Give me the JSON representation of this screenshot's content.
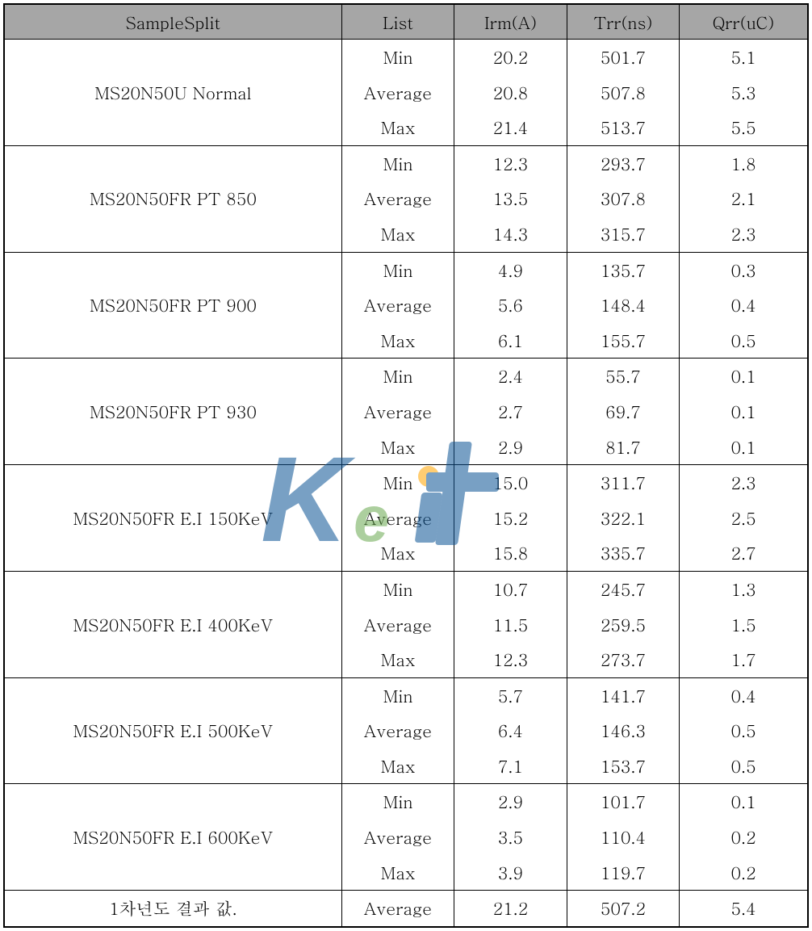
{
  "columns": {
    "sample": "SampleSplit",
    "list": "List",
    "irm": "Irm(A)",
    "trr": "Trr(ns)",
    "qrr": "Qrr(uC)"
  },
  "list_labels": {
    "min": "Min",
    "avg": "Average",
    "max": "Max"
  },
  "groups": [
    {
      "sample": "MS20N50U Normal",
      "rows": [
        {
          "list": "min",
          "irm": "20.2",
          "trr": "501.7",
          "qrr": "5.1"
        },
        {
          "list": "avg",
          "irm": "20.8",
          "trr": "507.8",
          "qrr": "5.3"
        },
        {
          "list": "max",
          "irm": "21.4",
          "trr": "513.7",
          "qrr": "5.5"
        }
      ]
    },
    {
      "sample": "MS20N50FR PT 850",
      "rows": [
        {
          "list": "min",
          "irm": "12.3",
          "trr": "293.7",
          "qrr": "1.8"
        },
        {
          "list": "avg",
          "irm": "13.5",
          "trr": "307.8",
          "qrr": "2.1"
        },
        {
          "list": "max",
          "irm": "14.3",
          "trr": "315.7",
          "qrr": "2.3"
        }
      ]
    },
    {
      "sample": "MS20N50FR PT 900",
      "rows": [
        {
          "list": "min",
          "irm": "4.9",
          "trr": "135.7",
          "qrr": "0.3"
        },
        {
          "list": "avg",
          "irm": "5.6",
          "trr": "148.4",
          "qrr": "0.4"
        },
        {
          "list": "max",
          "irm": "6.1",
          "trr": "155.7",
          "qrr": "0.5"
        }
      ]
    },
    {
      "sample": "MS20N50FR PT 930",
      "rows": [
        {
          "list": "min",
          "irm": "2.4",
          "trr": "55.7",
          "qrr": "0.1"
        },
        {
          "list": "avg",
          "irm": "2.7",
          "trr": "69.7",
          "qrr": "0.1"
        },
        {
          "list": "max",
          "irm": "2.9",
          "trr": "81.7",
          "qrr": "0.1"
        }
      ]
    },
    {
      "sample": "MS20N50FR E.I 150KeV",
      "rows": [
        {
          "list": "min",
          "irm": "15.0",
          "trr": "311.7",
          "qrr": "2.3"
        },
        {
          "list": "avg",
          "irm": "15.2",
          "trr": "322.1",
          "qrr": "2.5"
        },
        {
          "list": "max",
          "irm": "15.8",
          "trr": "335.7",
          "qrr": "2.7"
        }
      ]
    },
    {
      "sample": "MS20N50FR E.I 400KeV",
      "rows": [
        {
          "list": "min",
          "irm": "10.7",
          "trr": "245.7",
          "qrr": "1.3"
        },
        {
          "list": "avg",
          "irm": "11.5",
          "trr": "259.5",
          "qrr": "1.5"
        },
        {
          "list": "max",
          "irm": "12.3",
          "trr": "273.7",
          "qrr": "1.7"
        }
      ]
    },
    {
      "sample": "MS20N50FR E.I 500KeV",
      "rows": [
        {
          "list": "min",
          "irm": "5.7",
          "trr": "141.7",
          "qrr": "0.4"
        },
        {
          "list": "avg",
          "irm": "6.4",
          "trr": "146.3",
          "qrr": "0.5"
        },
        {
          "list": "max",
          "irm": "7.1",
          "trr": "153.7",
          "qrr": "0.5"
        }
      ]
    },
    {
      "sample": "MS20N50FR E.I 600KeV",
      "rows": [
        {
          "list": "min",
          "irm": "2.9",
          "trr": "101.7",
          "qrr": "0.1"
        },
        {
          "list": "avg",
          "irm": "3.5",
          "trr": "110.4",
          "qrr": "0.2"
        },
        {
          "list": "max",
          "irm": "3.9",
          "trr": "119.7",
          "qrr": "0.2"
        }
      ]
    }
  ],
  "summary": {
    "sample": "1차년도 결과 값.",
    "list": "Average",
    "irm": "21.2",
    "trr": "507.2",
    "qrr": "5.4"
  },
  "colors": {
    "header_bg": "#a6a6a6",
    "border": "#000000",
    "text": "#000000",
    "watermark_blue": "#0b5394",
    "watermark_green": "#6aa84f",
    "watermark_orange": "#ffa500"
  },
  "font": {
    "family": "Batang, serif",
    "size_pt": 15
  }
}
